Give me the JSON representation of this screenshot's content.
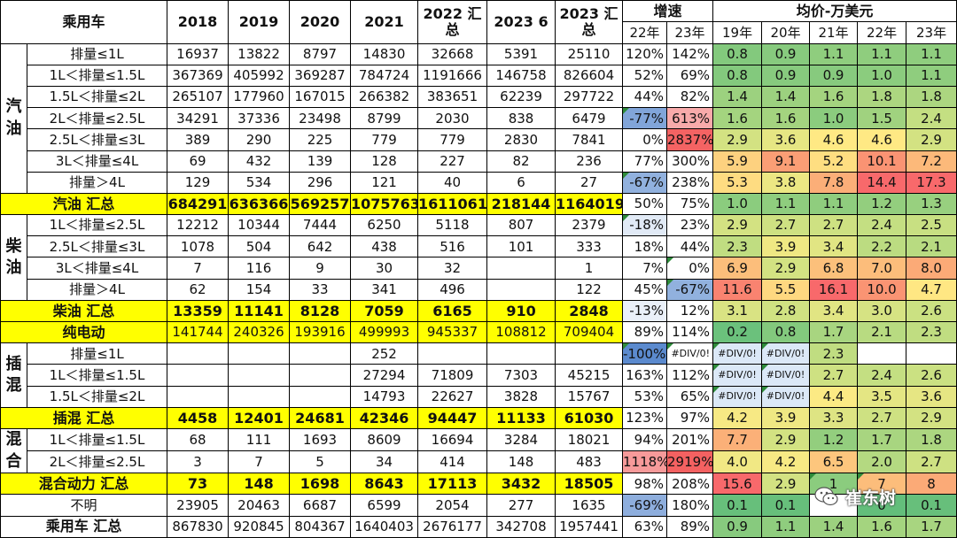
{
  "table": {
    "corner": "乘用车",
    "years": [
      "2018",
      "2019",
      "2020",
      "2021",
      "2022 汇总",
      "2023 6",
      "2023 汇总"
    ],
    "growth_header": "增速",
    "growth_years": [
      "22年",
      "23年"
    ],
    "price_header": "均价-万美元",
    "price_years": [
      "19年",
      "20年",
      "21年",
      "22年",
      "23年"
    ],
    "rows": [
      {
        "group": "汽油",
        "label": "排量≤1L",
        "vals": [
          "16937",
          "13822",
          "8797",
          "14830",
          "32668",
          "5391",
          "25110"
        ],
        "g": [
          "120%",
          "142%"
        ],
        "p": [
          "0.8",
          "0.9",
          "1.1",
          "1.1",
          "1.1"
        ]
      },
      {
        "group": "",
        "label": "1L＜排量≤1.5L",
        "vals": [
          "367369",
          "405992",
          "369287",
          "784724",
          "1191666",
          "146758",
          "826604"
        ],
        "g": [
          "52%",
          "69%"
        ],
        "p": [
          "0.8",
          "0.9",
          "0.9",
          "1.0",
          "1.1"
        ]
      },
      {
        "group": "",
        "label": "1.5L＜排量≤2L",
        "vals": [
          "265107",
          "177960",
          "167015",
          "266382",
          "383651",
          "62239",
          "297722"
        ],
        "g": [
          "44%",
          "82%"
        ],
        "p": [
          "1.4",
          "1.4",
          "1.6",
          "1.8",
          "1.8"
        ]
      },
      {
        "group": "",
        "label": "2L＜排量≤2.5L",
        "vals": [
          "34291",
          "37336",
          "23498",
          "8799",
          "2030",
          "838",
          "6479"
        ],
        "g": [
          "-77%",
          "613%"
        ],
        "p": [
          "1.6",
          "1.6",
          "1.0",
          "1.5",
          "2.4"
        ]
      },
      {
        "group": "",
        "label": "2.5L＜排量≤3L",
        "vals": [
          "389",
          "290",
          "225",
          "779",
          "779",
          "2830",
          "7841"
        ],
        "g": [
          "0%",
          "2837%"
        ],
        "p": [
          "2.9",
          "3.6",
          "4.6",
          "4.6",
          "2.9"
        ]
      },
      {
        "group": "",
        "label": "3L＜排量≤4L",
        "vals": [
          "69",
          "432",
          "139",
          "128",
          "227",
          "82",
          "236"
        ],
        "g": [
          "77%",
          "300%"
        ],
        "p": [
          "5.9",
          "9.1",
          "5.2",
          "10.1",
          "7.2"
        ]
      },
      {
        "group": "",
        "label": "排量＞4L",
        "vals": [
          "129",
          "534",
          "296",
          "121",
          "40",
          "6",
          "27"
        ],
        "g": [
          "-67%",
          "238%"
        ],
        "p": [
          "5.3",
          "3.8",
          "7.8",
          "14.4",
          "17.3"
        ]
      },
      {
        "group": "",
        "label": "汽油 汇总",
        "vals": [
          "684291",
          "636366",
          "569257",
          "1075763",
          "1611061",
          "218144",
          "1164019"
        ],
        "g": [
          "50%",
          "75%"
        ],
        "p": [
          "1.0",
          "1.1",
          "1.1",
          "1.2",
          "1.3"
        ]
      },
      {
        "group": "柴油",
        "label": "1L＜排量≤2.5L",
        "vals": [
          "12212",
          "10344",
          "7444",
          "6250",
          "5118",
          "807",
          "2379"
        ],
        "g": [
          "-18%",
          "23%"
        ],
        "p": [
          "2.9",
          "2.7",
          "2.7",
          "2.4",
          "2.5"
        ]
      },
      {
        "group": "",
        "label": "2.5L＜排量≤3L",
        "vals": [
          "1078",
          "504",
          "642",
          "438",
          "516",
          "101",
          "333"
        ],
        "g": [
          "18%",
          "44%"
        ],
        "p": [
          "2.3",
          "3.9",
          "3.4",
          "2.2",
          "2.1"
        ]
      },
      {
        "group": "",
        "label": "3L＜排量≤4L",
        "vals": [
          "7",
          "116",
          "9",
          "30",
          "32",
          "",
          "1"
        ],
        "g": [
          "7%",
          "0%"
        ],
        "p": [
          "6.9",
          "2.9",
          "6.8",
          "7.0",
          "8.0"
        ]
      },
      {
        "group": "",
        "label": "排量＞4L",
        "vals": [
          "62",
          "154",
          "33",
          "341",
          "496",
          "",
          "122"
        ],
        "g": [
          "45%",
          "-67%"
        ],
        "p": [
          "11.6",
          "5.5",
          "16.1",
          "10.0",
          "4.7"
        ]
      },
      {
        "group": "",
        "label": "柴油 汇总",
        "vals": [
          "13359",
          "11141",
          "8128",
          "7059",
          "6165",
          "910",
          "2848"
        ],
        "g": [
          "-13%",
          "12%"
        ],
        "p": [
          "3.1",
          "2.8",
          "3.4",
          "3.0",
          "2.6"
        ]
      },
      {
        "group": "",
        "label": "纯电动",
        "vals": [
          "141744",
          "240326",
          "193916",
          "499993",
          "945337",
          "108812",
          "709404"
        ],
        "g": [
          "89%",
          "114%"
        ],
        "p": [
          "0.2",
          "0.8",
          "1.7",
          "2.1",
          "2.3"
        ]
      },
      {
        "group": "插混",
        "label": "排量≤1L",
        "vals": [
          "",
          "",
          "",
          "252",
          "",
          "",
          ""
        ],
        "g": [
          "-100%",
          "#DIV/0!"
        ],
        "p": [
          "#DIV/0!",
          "#DIV/0!",
          "2.3",
          "",
          ""
        ]
      },
      {
        "group": "",
        "label": "1L＜排量≤1.5L",
        "vals": [
          "",
          "",
          "",
          "27294",
          "71809",
          "7303",
          "45215"
        ],
        "g": [
          "163%",
          "112%"
        ],
        "p": [
          "#DIV/0!",
          "#DIV/0!",
          "2.7",
          "2.4",
          "2.6"
        ]
      },
      {
        "group": "",
        "label": "1.5L＜排量≤2L",
        "vals": [
          "",
          "",
          "",
          "14793",
          "22627",
          "3828",
          "15767"
        ],
        "g": [
          "53%",
          "65%"
        ],
        "p": [
          "#DIV/0!",
          "#DIV/0!",
          "4.4",
          "3.5",
          "3.6"
        ]
      },
      {
        "group": "",
        "label": "插混 汇总",
        "vals": [
          "4458",
          "12401",
          "24681",
          "42346",
          "94447",
          "11133",
          "61030"
        ],
        "g": [
          "123%",
          "97%"
        ],
        "p": [
          "4.2",
          "3.9",
          "3.3",
          "2.7",
          "2.9"
        ]
      },
      {
        "group": "混合",
        "label": "1L＜排量≤1.5L",
        "vals": [
          "68",
          "111",
          "1693",
          "8609",
          "16694",
          "3284",
          "18021"
        ],
        "g": [
          "94%",
          "201%"
        ],
        "p": [
          "7.7",
          "2.9",
          "1.2",
          "1.7",
          "1.8"
        ]
      },
      {
        "group": "",
        "label": "2L＜排量≤2.5L",
        "vals": [
          "3",
          "7",
          "5",
          "34",
          "414",
          "148",
          "483"
        ],
        "g": [
          "1118%",
          "2919%"
        ],
        "p": [
          "4.0",
          "4.2",
          "6.5",
          "2.0",
          "2.7"
        ]
      },
      {
        "group": "",
        "label": "混合动力 汇总",
        "vals": [
          "73",
          "148",
          "1698",
          "8643",
          "17113",
          "3432",
          "18505"
        ],
        "g": [
          "98%",
          "208%"
        ],
        "p": [
          "15.6",
          "2.9",
          "1",
          "7",
          "8"
        ]
      },
      {
        "group": "",
        "label": "不明",
        "vals": [
          "23905",
          "20463",
          "6687",
          "6599",
          "2054",
          "277",
          "1635"
        ],
        "g": [
          "-69%",
          "180%"
        ],
        "p": [
          "0.1",
          "0.1",
          "",
          "0",
          "0.1"
        ]
      },
      {
        "group": "",
        "label": "乘用车 汇总",
        "vals": [
          "867830",
          "920845",
          "804367",
          "1640403",
          "2676177",
          "342708",
          "1957441"
        ],
        "g": [
          "63%",
          "89%"
        ],
        "p": [
          "0.9",
          "1.1",
          "1.4",
          "1.6",
          "1.7"
        ]
      }
    ]
  },
  "watermark": {
    "text": "崔东树"
  }
}
